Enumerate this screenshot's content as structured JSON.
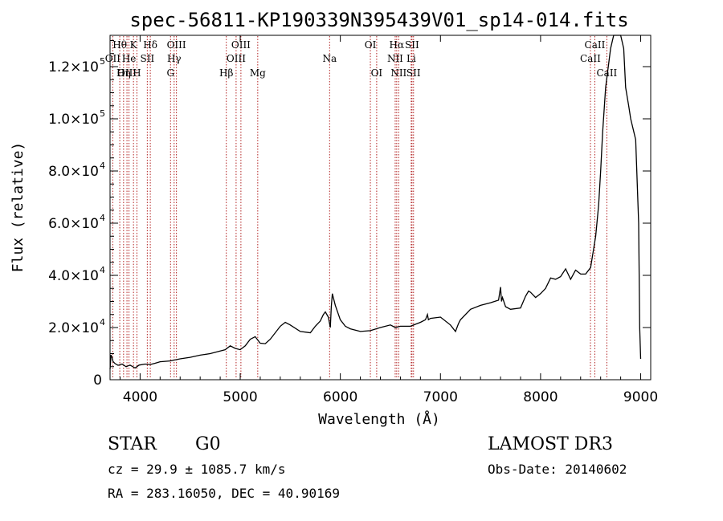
{
  "chart_data": {
    "type": "line",
    "title": "spec-56811-KP190339N395439V01_sp14-014.fits",
    "xlabel": "Wavelength (Å)",
    "ylabel": "Flux (relative)",
    "xlim": [
      3700,
      9100
    ],
    "ylim": [
      0,
      132000
    ],
    "x_ticks": [
      {
        "value": 4000,
        "label": "4000"
      },
      {
        "value": 5000,
        "label": "5000"
      },
      {
        "value": 6000,
        "label": "6000"
      },
      {
        "value": 7000,
        "label": "7000"
      },
      {
        "value": 8000,
        "label": "8000"
      },
      {
        "value": 9000,
        "label": "9000"
      }
    ],
    "y_ticks": [
      {
        "value": 0,
        "mant": "0",
        "exp": ""
      },
      {
        "value": 20000,
        "mant": "2.0×10",
        "exp": "4"
      },
      {
        "value": 40000,
        "mant": "4.0×10",
        "exp": "4"
      },
      {
        "value": 60000,
        "mant": "6.0×10",
        "exp": "4"
      },
      {
        "value": 80000,
        "mant": "8.0×10",
        "exp": "4"
      },
      {
        "value": 100000,
        "mant": "1.0×10",
        "exp": "5"
      },
      {
        "value": 120000,
        "mant": "1.2×10",
        "exp": "5"
      }
    ],
    "series": [
      {
        "name": "flux",
        "x": [
          3700,
          3710,
          3720,
          3730,
          3750,
          3780,
          3820,
          3860,
          3900,
          3950,
          3990,
          4050,
          4100,
          4150,
          4200,
          4300,
          4400,
          4500,
          4600,
          4700,
          4800,
          4850,
          4900,
          4950,
          5000,
          5050,
          5100,
          5150,
          5200,
          5250,
          5300,
          5400,
          5450,
          5500,
          5600,
          5700,
          5750,
          5800,
          5830,
          5850,
          5880,
          5900,
          5910,
          5920,
          5950,
          6000,
          6050,
          6100,
          6200,
          6300,
          6400,
          6500,
          6550,
          6600,
          6700,
          6800,
          6850,
          6870,
          6880,
          6900,
          7000,
          7100,
          7150,
          7180,
          7200,
          7300,
          7400,
          7500,
          7580,
          7600,
          7610,
          7620,
          7650,
          7700,
          7800,
          7850,
          7880,
          7900,
          7950,
          8000,
          8050,
          8100,
          8150,
          8200,
          8250,
          8300,
          8350,
          8400,
          8450,
          8500,
          8550,
          8580,
          8600,
          8620,
          8650,
          8700,
          8730,
          8750,
          8800,
          8830,
          8850,
          8880,
          8900,
          8950,
          8980,
          8990,
          9000
        ],
        "y": [
          4000,
          9500,
          8500,
          7000,
          6200,
          5500,
          6000,
          5000,
          5600,
          4500,
          5600,
          6000,
          5800,
          6300,
          6900,
          7200,
          8000,
          8600,
          9400,
          10000,
          11000,
          11500,
          13000,
          12000,
          11500,
          13000,
          15500,
          16500,
          14000,
          13800,
          15500,
          20500,
          22000,
          21000,
          18500,
          18000,
          20500,
          22500,
          25000,
          26000,
          24000,
          20000,
          28000,
          33000,
          28500,
          23000,
          20500,
          19500,
          18500,
          18800,
          20000,
          21000,
          20000,
          20500,
          20500,
          22000,
          23000,
          25000,
          23000,
          23500,
          24000,
          21000,
          18500,
          21500,
          23000,
          27000,
          28500,
          29500,
          30500,
          35500,
          30000,
          31500,
          28000,
          27000,
          27500,
          32000,
          34000,
          33500,
          31500,
          33000,
          35000,
          39000,
          38500,
          39500,
          42500,
          38500,
          42000,
          40500,
          40500,
          43000,
          55000,
          67000,
          80000,
          95000,
          112000,
          127000,
          133000,
          133000,
          133000,
          127000,
          112000,
          105000,
          100000,
          92000,
          60000,
          20000,
          8000
        ]
      }
    ],
    "lines_marked": [
      {
        "name": "Hθ",
        "wl": 3797,
        "row": 1
      },
      {
        "name": "OII",
        "wl": 3727,
        "row": 2
      },
      {
        "name": "OIII",
        "wl": 3869,
        "row": 3
      },
      {
        "name": "Hη",
        "wl": 3835,
        "row": 3
      },
      {
        "name": "He",
        "wl": 3889,
        "row": 2
      },
      {
        "name": "K",
        "wl": 3934,
        "row": 1
      },
      {
        "name": "SII",
        "wl": 4072,
        "row": 2
      },
      {
        "name": "H",
        "wl": 3968,
        "row": 3
      },
      {
        "name": "Hδ",
        "wl": 4102,
        "row": 1
      },
      {
        "name": "OIII",
        "wl": 4363,
        "row": 1
      },
      {
        "name": "Hγ",
        "wl": 4340,
        "row": 2
      },
      {
        "name": "G",
        "wl": 4304,
        "row": 3
      },
      {
        "name": "Hβ",
        "wl": 4861,
        "row": 3
      },
      {
        "name": "OIII",
        "wl": 4959,
        "row": 2
      },
      {
        "name": "OIII",
        "wl": 5007,
        "row": 1
      },
      {
        "name": "Mg",
        "wl": 5175,
        "row": 3
      },
      {
        "name": "Na",
        "wl": 5893,
        "row": 2
      },
      {
        "name": "OI",
        "wl": 6300,
        "row": 1
      },
      {
        "name": "OI",
        "wl": 6363,
        "row": 3
      },
      {
        "name": "NII",
        "wl": 6548,
        "row": 2
      },
      {
        "name": "Hα",
        "wl": 6563,
        "row": 1
      },
      {
        "name": "NII",
        "wl": 6583,
        "row": 3
      },
      {
        "name": "SII",
        "wl": 6716,
        "row": 1
      },
      {
        "name": "Li",
        "wl": 6708,
        "row": 2
      },
      {
        "name": "SII",
        "wl": 6731,
        "row": 3
      },
      {
        "name": "CaII",
        "wl": 8498,
        "row": 2
      },
      {
        "name": "CaII",
        "wl": 8542,
        "row": 1
      },
      {
        "name": "CaII",
        "wl": 8662,
        "row": 3
      }
    ]
  },
  "info": {
    "class": "STAR",
    "subclass": "G0",
    "survey": "LAMOST DR3",
    "redshift": "cz = 29.9 ± 1085.7 km/s",
    "obs_date": "Obs-Date: 20140602",
    "coords": "RA = 283.16050, DEC =  40.90169"
  }
}
